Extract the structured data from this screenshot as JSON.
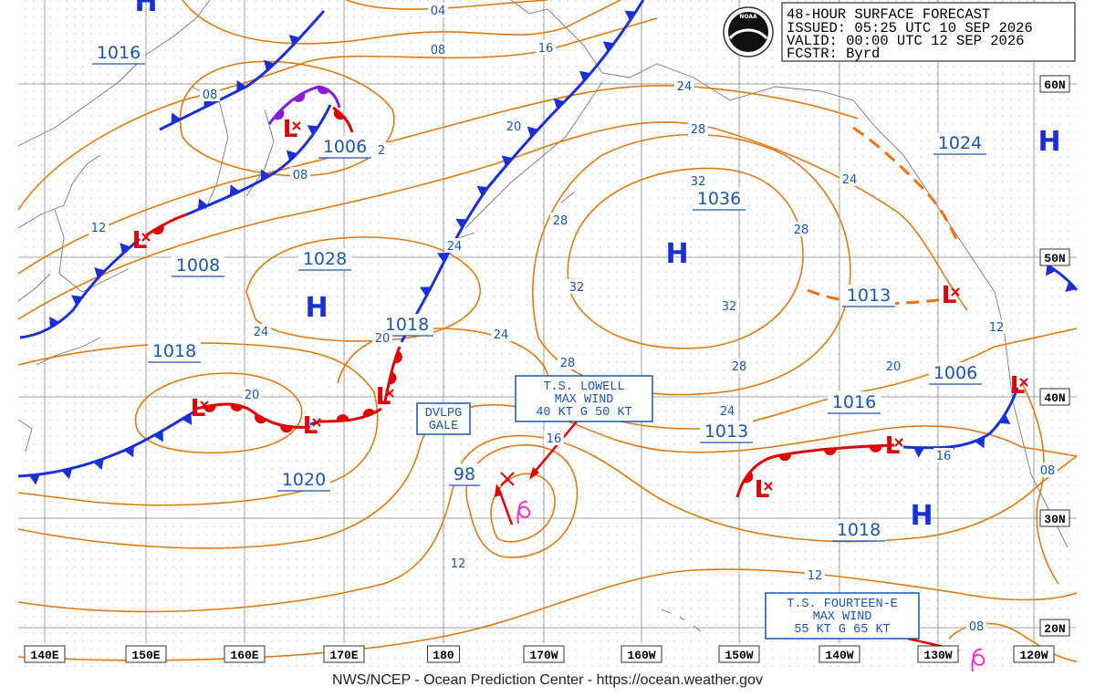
{
  "header": {
    "title": "48-HOUR SURFACE FORECAST",
    "issued": "ISSUED: 05:25 UTC 10 SEP 2026",
    "valid": "VALID: 00:00 UTC 12 SEP 2026",
    "forecaster": "FCSTR: Byrd"
  },
  "logo": "NOAA",
  "footer": "NWS/NCEP - Ocean Prediction Center - https://ocean.weather.gov",
  "longitudes": [
    "140E",
    "150E",
    "160E",
    "170E",
    "180",
    "170W",
    "160W",
    "150W",
    "140W",
    "130W",
    "120W"
  ],
  "latitudes": [
    "60N",
    "50N",
    "40N",
    "30N",
    "20N"
  ],
  "high_symbols": [
    "H",
    "H",
    "H",
    "H",
    "H"
  ],
  "low_symbols": [
    "L",
    "L",
    "L",
    "L",
    "L",
    "L",
    "L",
    "L",
    "L"
  ],
  "pressure_labels": [
    "1016",
    "1006",
    "1008",
    "1028",
    "1018",
    "1018",
    "1020",
    "98",
    "1036",
    "1013",
    "1013",
    "1016",
    "1006",
    "1024",
    "1018"
  ],
  "isobar_labels": [
    "04",
    "08",
    "08",
    "2",
    "08",
    "16",
    "24",
    "20",
    "28",
    "32",
    "12",
    "28",
    "24",
    "24",
    "28",
    "32",
    "32",
    "24",
    "20",
    "24",
    "28",
    "28",
    "20",
    "12",
    "20",
    "24",
    "16",
    "16",
    "08",
    "12",
    "12",
    "08"
  ],
  "storms": [
    {
      "lines": [
        "T.S. LOWELL",
        "MAX WIND",
        "40 KT G 50 KT"
      ]
    },
    {
      "lines": [
        "T.S. FOURTEEN-E",
        "MAX WIND",
        "55 KT G 65 KT"
      ]
    }
  ],
  "warning": [
    "DVLPG",
    "GALE"
  ]
}
